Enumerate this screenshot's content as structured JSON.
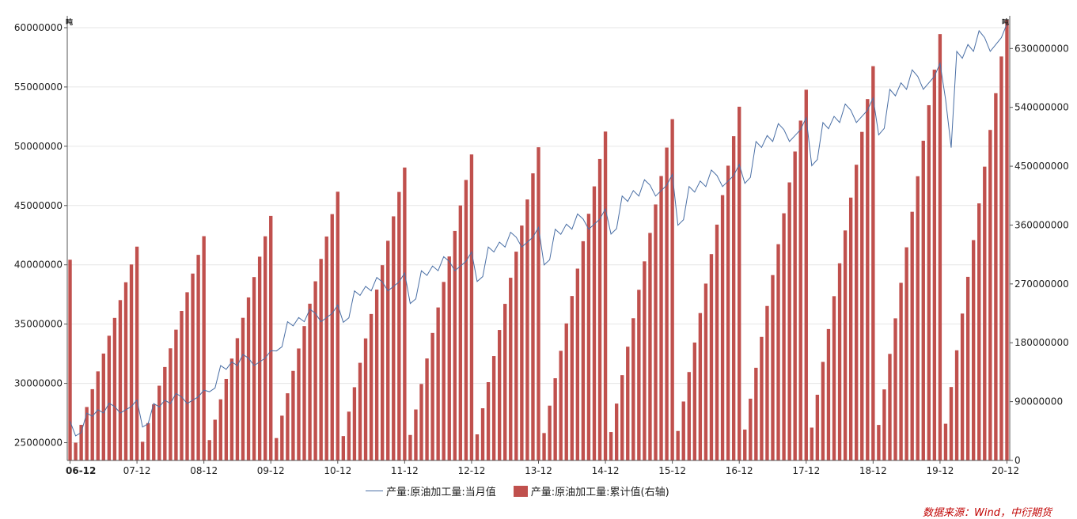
{
  "chart_data": {
    "type": "bar+line",
    "left_axis": {
      "unit": "吨",
      "ylim": [
        23500000,
        61000000
      ],
      "ticks": [
        "25000000",
        "30000000",
        "35000000",
        "40000000",
        "45000000",
        "50000000",
        "55000000",
        "60000000"
      ],
      "tick_values": [
        25000000,
        30000000,
        35000000,
        40000000,
        45000000,
        50000000,
        55000000,
        60000000
      ]
    },
    "right_axis": {
      "unit": "吨",
      "ylim": [
        0,
        680000000
      ],
      "ticks": [
        "0",
        "90000000",
        "180000000",
        "270000000",
        "360000000",
        "450000000",
        "540000000",
        "630000000"
      ],
      "tick_values": [
        0,
        90000000,
        180000000,
        270000000,
        360000000,
        450000000,
        540000000,
        630000000
      ]
    },
    "x_tick_labels": [
      "06-12",
      "07-12",
      "08-12",
      "09-12",
      "10-12",
      "11-12",
      "12-12",
      "13-12",
      "14-12",
      "15-12",
      "16-12",
      "17-12",
      "18-12",
      "19-12",
      "20-12"
    ],
    "start": "2006-12",
    "end": "2020-12",
    "series": [
      {
        "name": "产量:原油加工量:当月值",
        "axis": "left",
        "kind": "line",
        "color": "#4a6fa5",
        "base_by_year": [
          null,
          27500000,
          28300000,
          31500000,
          35200000,
          37800000,
          39500000,
          41500000,
          43000000,
          45800000,
          46600000,
          50400000,
          52000000,
          54800000,
          58000000
        ]
      },
      {
        "name": "产量:原油加工量:累计值(右轴)",
        "axis": "right",
        "kind": "bar",
        "color": "#c0504d",
        "dec_2006_value": 307000000,
        "annual_totals": [
          327000000,
          343000000,
          374000000,
          411000000,
          448000000,
          468000000,
          479000000,
          503000000,
          522000000,
          541000000,
          567000000,
          603000000,
          652000000,
          674000000
        ]
      }
    ]
  },
  "legend": {
    "line_label": "产量:原油加工量:当月值",
    "bar_label": "产量:原油加工量:累计值(右轴)"
  },
  "source": "数据来源：Wind，中衍期货"
}
